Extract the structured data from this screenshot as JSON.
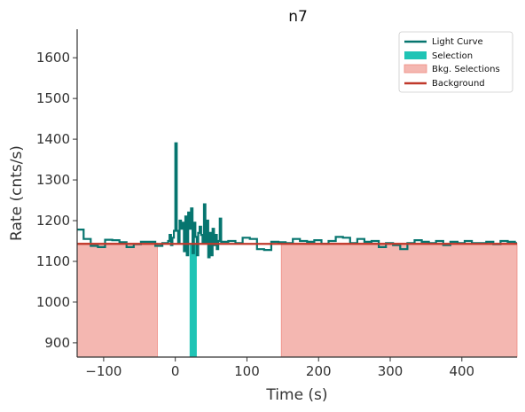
{
  "chart_data": {
    "type": "line",
    "title": "n7",
    "xlabel": "Time (s)",
    "ylabel": "Rate (cnts/s)",
    "xlim": [
      -137,
      477
    ],
    "ylim": [
      865,
      1670
    ],
    "xticks": [
      -100,
      0,
      100,
      200,
      300,
      400
    ],
    "yticks": [
      900,
      1000,
      1100,
      1200,
      1300,
      1400,
      1500,
      1600
    ],
    "xtick_labels": [
      "−100",
      "0",
      "100",
      "200",
      "300",
      "400"
    ],
    "ytick_labels": [
      "900",
      "1000",
      "1100",
      "1200",
      "1300",
      "1400",
      "1500",
      "1600"
    ],
    "grid": false,
    "legend_position": "top-right",
    "colors": {
      "light_curve": "#06756f",
      "selection": "#1fc4b5",
      "bkg_selection_fill": "#f4b7b1",
      "bkg_selection_edge": "#ef8b81",
      "background": "#c0392b"
    },
    "series": [
      {
        "name": "Light Curve",
        "kind": "step",
        "x": [
          -137,
          -128,
          -118,
          -108,
          -98,
          -88,
          -78,
          -68,
          -58,
          -48,
          -38,
          -28,
          -18,
          -10,
          -8,
          -6,
          -4,
          -2,
          0,
          2,
          4,
          6,
          8,
          10,
          12,
          14,
          16,
          18,
          20,
          22,
          24,
          26,
          28,
          30,
          32,
          34,
          36,
          38,
          40,
          42,
          44,
          46,
          48,
          50,
          52,
          54,
          56,
          58,
          60,
          62,
          64,
          74,
          84,
          94,
          104,
          114,
          124,
          134,
          144,
          154,
          164,
          174,
          184,
          194,
          204,
          214,
          224,
          234,
          244,
          254,
          264,
          274,
          284,
          294,
          304,
          314,
          324,
          334,
          344,
          354,
          364,
          374,
          384,
          394,
          404,
          414,
          424,
          434,
          444,
          454,
          464,
          474
        ],
        "y": [
          1178,
          1155,
          1138,
          1135,
          1153,
          1152,
          1147,
          1135,
          1142,
          1148,
          1148,
          1138,
          1145,
          1150,
          1165,
          1140,
          1158,
          1175,
          1390,
          1175,
          1145,
          1200,
          1180,
          1195,
          1125,
          1210,
          1115,
          1220,
          1180,
          1230,
          1120,
          1195,
          1160,
          1115,
          1170,
          1185,
          1165,
          1145,
          1240,
          1145,
          1200,
          1110,
          1170,
          1115,
          1180,
          1140,
          1165,
          1130,
          1150,
          1205,
          1148,
          1150,
          1145,
          1158,
          1155,
          1130,
          1128,
          1148,
          1147,
          1145,
          1155,
          1150,
          1148,
          1152,
          1143,
          1150,
          1160,
          1158,
          1145,
          1155,
          1148,
          1150,
          1135,
          1145,
          1140,
          1130,
          1145,
          1152,
          1148,
          1145,
          1150,
          1140,
          1148,
          1145,
          1150,
          1145,
          1145,
          1148,
          1142,
          1150,
          1148,
          1145
        ]
      },
      {
        "name": "Selection",
        "kind": "fill",
        "x_range": [
          20,
          30
        ],
        "y_top": 1145
      },
      {
        "name": "Bkg. Selections",
        "kind": "fill",
        "ranges": [
          [
            -137,
            -25
          ],
          [
            148,
            477
          ]
        ],
        "y_top": 1145
      },
      {
        "name": "Background",
        "kind": "line",
        "x": [
          -137,
          477
        ],
        "y": [
          1143,
          1143
        ]
      }
    ]
  }
}
